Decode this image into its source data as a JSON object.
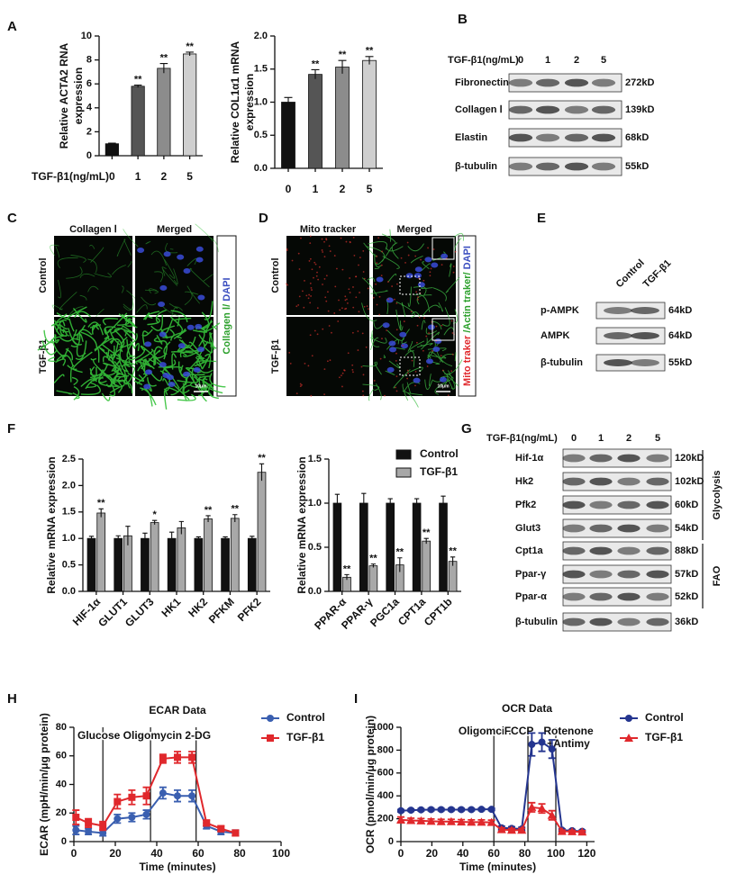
{
  "panel_labels": [
    "A",
    "B",
    "C",
    "D",
    "E",
    "F",
    "G",
    "H",
    "I"
  ],
  "chart_data": [
    {
      "type": "bar",
      "ylabel": [
        "Relative ACTA2 RNA",
        "expression"
      ],
      "xlabel": "TGF-β1(ng/mL)",
      "categories": [
        "0",
        "1",
        "2",
        "5"
      ],
      "values": [
        1,
        5.8,
        7.3,
        8.5
      ],
      "errors": [
        0.05,
        0.1,
        0.4,
        0.15
      ],
      "annotations": [
        null,
        "**",
        "**",
        "**"
      ],
      "colors": [
        "#111111",
        "#555555",
        "#8c8c8c",
        "#cfcfcf"
      ],
      "ylim": [
        0,
        10
      ],
      "yticks": [
        0,
        2,
        4,
        6,
        8,
        10
      ]
    },
    {
      "type": "bar",
      "ylabel": [
        "Relative COL1α1 mRNA",
        "expression"
      ],
      "categories": [
        "0",
        "1",
        "2",
        "5"
      ],
      "values": [
        1.0,
        1.42,
        1.53,
        1.63
      ],
      "errors": [
        0.07,
        0.07,
        0.1,
        0.06
      ],
      "annotations": [
        null,
        "**",
        "**",
        "**"
      ],
      "colors": [
        "#111111",
        "#555555",
        "#8c8c8c",
        "#cfcfcf"
      ],
      "ylim": [
        0,
        2
      ],
      "yticks": [
        {
          "value": 0,
          "label": "0.0"
        },
        0.5,
        {
          "value": 1,
          "label": "1.0"
        },
        1.5,
        {
          "value": 2,
          "label": "2.0"
        }
      ]
    },
    {
      "type": "bar",
      "ylabel": [
        "Relative  mRNA expression"
      ],
      "categories": [
        "HIF-1α",
        "GLUT1",
        "GLUT3",
        "HK1",
        "HK2",
        "PFKM",
        "PFK2"
      ],
      "series": [
        {
          "name": "Control",
          "color": "#111111",
          "values": [
            1,
            1,
            1,
            1,
            1,
            1,
            1
          ],
          "errors": [
            0.04,
            0.05,
            0.1,
            0.12,
            0.03,
            0.03,
            0.04
          ],
          "annotations": [
            null,
            null,
            null,
            null,
            null,
            null,
            null
          ]
        },
        {
          "name": "TGF-β1",
          "color": "#a8a8a8",
          "values": [
            1.48,
            1.05,
            1.3,
            1.2,
            1.37,
            1.38,
            2.25
          ],
          "errors": [
            0.08,
            0.18,
            0.04,
            0.12,
            0.06,
            0.07,
            0.16
          ],
          "annotations": [
            "**",
            null,
            "*",
            null,
            "**",
            "**",
            "**"
          ]
        }
      ],
      "ylim": [
        0,
        2.5
      ],
      "yticks": [
        {
          "value": 0,
          "label": "0.0"
        },
        0.5,
        {
          "value": 1,
          "label": "1.0"
        },
        1.5,
        {
          "value": 2,
          "label": "2.0"
        },
        2.5
      ]
    },
    {
      "type": "bar",
      "ylabel": [
        "Relative mRNA expression"
      ],
      "categories": [
        "PPAR-α",
        "PPAR-γ",
        "PGC1a",
        "CPT1a",
        "CPT1b"
      ],
      "series": [
        {
          "name": "Control",
          "color": "#111111",
          "values": [
            1,
            1,
            1,
            1,
            1
          ],
          "errors": [
            0.1,
            0.11,
            0.05,
            0.05,
            0.08
          ],
          "annotations": [
            null,
            null,
            null,
            null,
            null
          ]
        },
        {
          "name": "TGF-β1",
          "color": "#a8a8a8",
          "values": [
            0.16,
            0.29,
            0.3,
            0.57,
            0.34
          ],
          "errors": [
            0.03,
            0.02,
            0.08,
            0.03,
            0.05
          ],
          "annotations": [
            "**",
            "**",
            "**",
            "**",
            "**"
          ]
        }
      ],
      "ylim": [
        0,
        1.5
      ],
      "yticks": [
        {
          "value": 0,
          "label": "0.0"
        },
        0.5,
        {
          "value": 1,
          "label": "1.0"
        },
        1.5
      ]
    },
    {
      "type": "line",
      "title": "ECAR Data",
      "ylabel": [
        "ECAR (mpH/min/μg protein)"
      ],
      "xlabel": "Time (minutes)",
      "annotation": "Glucose Oligomycin 2-DG",
      "vlines": [
        14,
        37,
        59
      ],
      "x": [
        1,
        7,
        14,
        21,
        28,
        35,
        43,
        50,
        57,
        64,
        71,
        78
      ],
      "series": [
        {
          "name": "Control",
          "color": "#3a5fb0",
          "marker": "circle",
          "values": [
            8,
            7,
            6,
            16,
            17,
            19,
            34,
            32,
            32,
            11,
            7,
            6
          ],
          "errors": [
            3,
            2,
            2,
            3,
            3,
            3,
            4,
            4,
            4,
            2,
            2,
            2
          ]
        },
        {
          "name": "TGF-β1",
          "color": "#e0282c",
          "marker": "square",
          "values": [
            17,
            13,
            11,
            28,
            31,
            32,
            58,
            59,
            59,
            13,
            9,
            6
          ],
          "errors": [
            5,
            3,
            3,
            5,
            5,
            6,
            3,
            4,
            4,
            2,
            2,
            2
          ]
        }
      ],
      "xlim": [
        0,
        100
      ],
      "xticks": [
        0,
        20,
        40,
        60,
        80,
        100
      ],
      "ylim": [
        0,
        80
      ],
      "yticks": [
        0,
        20,
        40,
        60,
        80
      ]
    },
    {
      "type": "line",
      "title": "OCR Data",
      "ylabel": [
        "OCR (pmol/min/μg protein)"
      ],
      "xlabel": "Time (minutes)",
      "vlines": [
        {
          "x": 60,
          "label": [
            "Oligomcin"
          ]
        },
        {
          "x": 82,
          "label": [
            "FCCP"
          ]
        },
        {
          "x": 100,
          "label": [
            "Rotenone",
            "+Antimy"
          ]
        }
      ],
      "x": [
        0,
        6.5,
        13,
        19.5,
        26,
        32.5,
        39,
        45.5,
        52,
        58.5,
        65,
        71.5,
        78,
        84.5,
        91,
        97.5,
        104,
        110.5,
        117
      ],
      "series": [
        {
          "name": "Control",
          "color": "#24358f",
          "marker": "circle",
          "values": [
            270,
            275,
            278,
            280,
            280,
            280,
            280,
            280,
            282,
            282,
            120,
            115,
            110,
            850,
            870,
            810,
            100,
            95,
            90
          ],
          "errors": [
            10,
            10,
            10,
            10,
            10,
            10,
            10,
            10,
            10,
            10,
            15,
            15,
            15,
            100,
            80,
            80,
            10,
            10,
            10
          ]
        },
        {
          "name": "TGF-β1",
          "color": "#e0282c",
          "marker": "triangle",
          "values": [
            190,
            185,
            182,
            178,
            175,
            175,
            172,
            170,
            170,
            168,
            105,
            100,
            100,
            300,
            290,
            230,
            90,
            88,
            85
          ],
          "errors": [
            25,
            20,
            20,
            20,
            20,
            20,
            20,
            20,
            20,
            20,
            15,
            15,
            15,
            40,
            40,
            40,
            10,
            10,
            10
          ]
        }
      ],
      "xlim": [
        0,
        125
      ],
      "xticks": [
        0,
        20,
        40,
        60,
        80,
        100,
        120
      ],
      "ylim": [
        0,
        1000
      ],
      "yticks": [
        0,
        200,
        400,
        600,
        800,
        1000
      ]
    }
  ],
  "blots": {
    "B": {
      "header": "TGF-β1(ng/mL)",
      "lanes": [
        "0",
        "1",
        "2",
        "5"
      ],
      "rows": [
        {
          "label": "Fibronectin",
          "size": "272kD"
        },
        {
          "label": "Collagen Ⅰ",
          "size": "139kD"
        },
        {
          "label": "Elastin",
          "size": "68kD"
        },
        {
          "label": "β-tubulin",
          "size": "55kD"
        }
      ]
    },
    "E": {
      "lanes": [
        "Control",
        "TGF-β1"
      ],
      "rows": [
        {
          "label": "p-AMPK",
          "size": "64kD"
        },
        {
          "label": "AMPK",
          "size": "64kD"
        },
        {
          "label": "β-tubulin",
          "size": "55kD"
        }
      ]
    },
    "G": {
      "header": "TGF-β1(ng/mL)",
      "lanes": [
        "0",
        "1",
        "2",
        "5"
      ],
      "rows": [
        {
          "label": "Hif-1α",
          "size": "120kD"
        },
        {
          "label": "Hk2",
          "size": "102kD"
        },
        {
          "label": "Pfk2",
          "size": "60kD"
        },
        {
          "label": "Glut3",
          "size": "54kD"
        },
        {
          "label": "Cpt1a",
          "size": "88kD"
        },
        {
          "label": "Ppar-γ",
          "size": "57kD"
        },
        {
          "label": "Ppar-α",
          "size": "52kD"
        },
        {
          "label": "β-tubulin",
          "size": "36kD"
        }
      ],
      "groups": [
        "Glycolysis",
        "FAO"
      ]
    }
  },
  "images": {
    "C": {
      "channel": "Collagen Ⅰ",
      "merged": "Merged",
      "rows": [
        "Control",
        "TGF-β1"
      ],
      "legend": [
        "Collagen Ⅰ/ ",
        "DAPI"
      ],
      "scale": "10μm"
    },
    "D": {
      "channel": "Mito tracker",
      "merged": "Merged",
      "rows": [
        "Control",
        "TGF-β1"
      ],
      "legend": [
        "Mito traker ",
        "/Actin traker/ ",
        "DAPI"
      ],
      "scale": "10μm"
    }
  }
}
